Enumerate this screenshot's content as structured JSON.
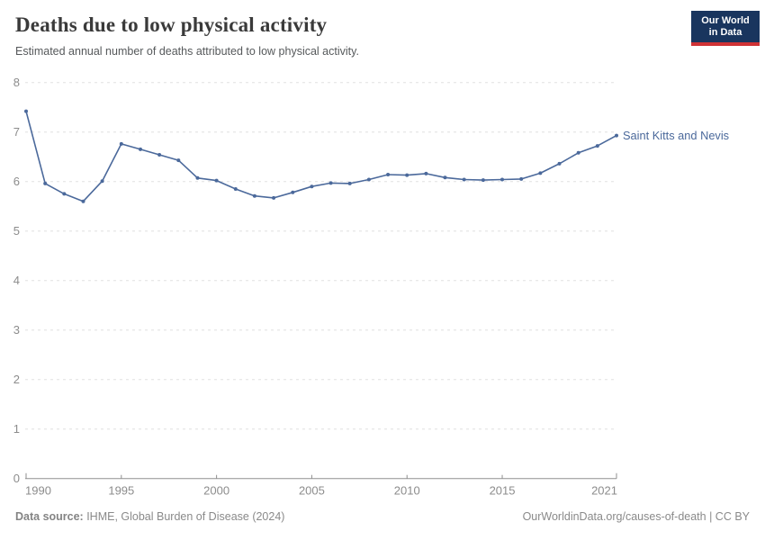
{
  "header": {
    "title": "Deaths due to low physical activity",
    "subtitle": "Estimated annual number of deaths attributed to low physical activity.",
    "logo": {
      "line1": "Our World",
      "line2": "in Data"
    }
  },
  "chart_data": {
    "type": "line",
    "title": "Deaths due to low physical activity",
    "subtitle": "Estimated annual number of deaths attributed to low physical activity.",
    "x": [
      1990,
      1991,
      1992,
      1993,
      1994,
      1995,
      1996,
      1997,
      1998,
      1999,
      2000,
      2001,
      2002,
      2003,
      2004,
      2005,
      2006,
      2007,
      2008,
      2009,
      2010,
      2011,
      2012,
      2013,
      2014,
      2015,
      2016,
      2017,
      2018,
      2019,
      2020,
      2021
    ],
    "series": [
      {
        "name": "Saint Kitts and Nevis",
        "color": "#4b699b",
        "values": [
          7.42,
          5.96,
          5.75,
          5.6,
          6.01,
          6.76,
          6.65,
          6.54,
          6.43,
          6.07,
          6.02,
          5.85,
          5.71,
          5.67,
          5.78,
          5.9,
          5.97,
          5.96,
          6.04,
          6.14,
          6.13,
          6.16,
          6.08,
          6.04,
          6.03,
          6.04,
          6.05,
          6.17,
          6.36,
          6.58,
          6.72,
          6.93
        ]
      }
    ],
    "xlabel": "",
    "ylabel": "",
    "x_ticks": [
      1990,
      1995,
      2000,
      2005,
      2010,
      2015,
      2021
    ],
    "y_ticks": [
      0,
      1,
      2,
      3,
      4,
      5,
      6,
      7,
      8
    ],
    "xlim": [
      1990,
      2021
    ],
    "ylim": [
      0,
      8
    ],
    "grid": "horizontal-dashed",
    "legend_position": "label-at-line-end"
  },
  "footer": {
    "source_label": "Data source:",
    "source_rest": " IHME, Global Burden of Disease (2024)",
    "credit": "OurWorldinData.org/causes-of-death | CC BY"
  },
  "colors": {
    "line": "#4b699b",
    "gridline": "#e0e0e0",
    "axis": "#8f8f8f",
    "tick_label": "#8c8c8c",
    "logo_bg": "#19355e",
    "logo_accent": "#cf3235"
  }
}
